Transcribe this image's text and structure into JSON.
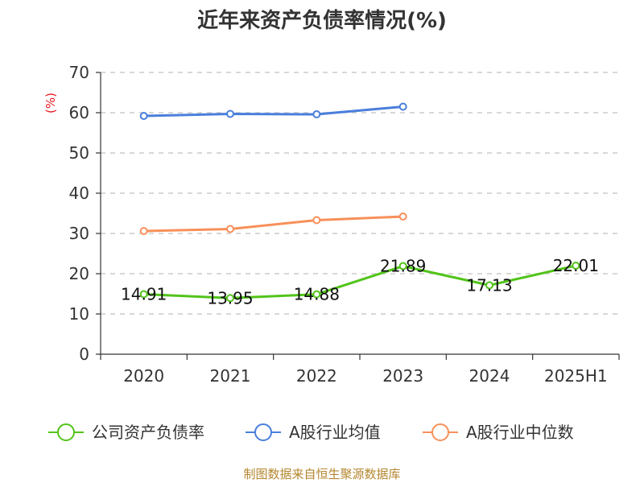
{
  "chart_data": {
    "type": "line",
    "title": "近年来资产负债率情况(%)",
    "ylabel": "(%)",
    "xlabel": "",
    "categories": [
      "2020",
      "2021",
      "2022",
      "2023",
      "2024",
      "2025H1"
    ],
    "ylim": [
      0,
      70
    ],
    "yticks": [
      "0",
      "10",
      "20",
      "30",
      "40",
      "50",
      "60",
      "70"
    ],
    "grid": true,
    "legend_position": "bottom",
    "series": [
      {
        "name": "公司资产负债率",
        "color": "#52c41a",
        "values": [
          14.91,
          13.95,
          14.88,
          21.89,
          17.13,
          22.01
        ],
        "labels": [
          "14.91",
          "13.95",
          "14.88",
          "21.89",
          "17.13",
          "22.01"
        ]
      },
      {
        "name": "A股行业均值",
        "color": "#4a7fdc",
        "values": [
          59.2,
          59.7,
          59.6,
          61.5,
          null,
          null
        ]
      },
      {
        "name": "A股行业中位数",
        "color": "#f7905a",
        "values": [
          30.6,
          31.1,
          33.3,
          34.2,
          null,
          null
        ]
      }
    ],
    "source": "制图数据来自恒生聚源数据库"
  }
}
